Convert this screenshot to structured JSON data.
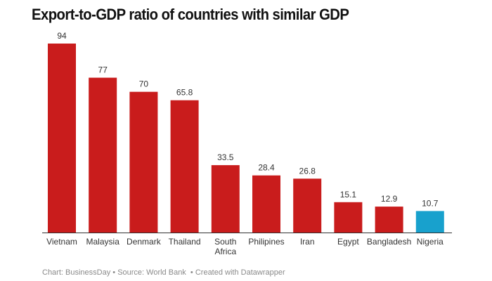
{
  "title": "Export-to-GDP ratio of countries with similar GDP",
  "footer": {
    "chart_credit": "Chart: BusinessDay",
    "source": "Source: World Bank",
    "created": "Created with Datawrapper",
    "separator": " • "
  },
  "colors": {
    "default_bar": "#c91c1c",
    "highlight_bar": "#18a1cd",
    "axis": "#333333",
    "label": "#333333"
  },
  "chart_data": {
    "type": "bar",
    "title": "Export-to-GDP ratio of countries with similar GDP",
    "xlabel": "",
    "ylabel": "",
    "ylim": [
      0,
      94
    ],
    "grid": false,
    "legend": "none",
    "categories": [
      [
        "Vietnam"
      ],
      [
        "Malaysia"
      ],
      [
        "Denmark"
      ],
      [
        "Thailand"
      ],
      [
        "South",
        "Africa"
      ],
      [
        "Philipines"
      ],
      [
        "Iran"
      ],
      [
        "Egypt"
      ],
      [
        "Bangladesh"
      ],
      [
        "Nigeria"
      ]
    ],
    "values": [
      94,
      77,
      70,
      65.8,
      33.5,
      28.4,
      26.8,
      15.1,
      12.9,
      10.7
    ],
    "value_labels": [
      "94",
      "77",
      "70",
      "65.8",
      "33.5",
      "28.4",
      "26.8",
      "15.1",
      "12.9",
      "10.7"
    ],
    "highlight": [
      "Nigeria"
    ]
  }
}
